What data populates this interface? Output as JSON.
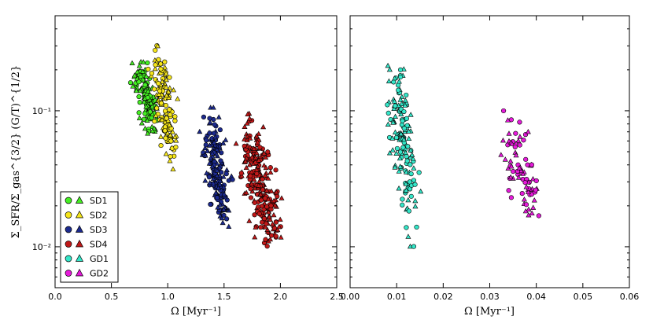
{
  "chart_data": [
    {
      "type": "scatter",
      "title": "",
      "xlabel": "Ω [Myr⁻¹]",
      "ylabel": "Σ_SFR/Σ_gas^{3/2} (G/T)^{1/2}",
      "xlim": [
        0.0,
        2.5
      ],
      "ylim": [
        0.005,
        0.5
      ],
      "yscale": "log",
      "xticks": [
        "0.0",
        "0.5",
        "1.0",
        "1.5",
        "2.0",
        "2.5"
      ],
      "yticks": [
        {
          "value": 0.01,
          "label": "10⁻²"
        },
        {
          "value": 0.1,
          "label": "10⁻¹"
        }
      ],
      "grid": false,
      "legend_position": "lower-left",
      "legend": [
        {
          "label": "SD1",
          "color": "#44ee22"
        },
        {
          "label": "SD2",
          "color": "#f5e51a"
        },
        {
          "label": "SD3",
          "color": "#1c2a8e"
        },
        {
          "label": "SD4",
          "color": "#c01818"
        },
        {
          "label": "GD1",
          "color": "#33e6c8"
        },
        {
          "label": "GD2",
          "color": "#e51ad9"
        }
      ],
      "series": [
        {
          "name": "SD1",
          "color": "#44ee22",
          "x_range": [
            0.62,
            0.97
          ],
          "y_range": [
            0.06,
            0.26
          ],
          "count": 130
        },
        {
          "name": "SD2",
          "color": "#f5e51a",
          "x_range": [
            0.78,
            1.12
          ],
          "y_range": [
            0.037,
            0.33
          ],
          "count": 140
        },
        {
          "name": "SD3",
          "color": "#1c2a8e",
          "x_range": [
            1.22,
            1.6
          ],
          "y_range": [
            0.014,
            0.105
          ],
          "count": 180
        },
        {
          "name": "SD4",
          "color": "#c01818",
          "x_range": [
            1.55,
            2.05
          ],
          "y_range": [
            0.009,
            0.095
          ],
          "count": 260
        }
      ]
    },
    {
      "type": "scatter",
      "title": "",
      "xlabel": "Ω [Myr⁻¹]",
      "ylabel": "",
      "xlim": [
        0.0,
        0.06
      ],
      "ylim": [
        0.005,
        0.5
      ],
      "yscale": "log",
      "xticks": [
        "0.00",
        "0.01",
        "0.02",
        "0.03",
        "0.04",
        "0.05",
        "0.06"
      ],
      "grid": false,
      "series": [
        {
          "name": "GD1",
          "color": "#33e6c8",
          "x_range": [
            0.006,
            0.016
          ],
          "y_range": [
            0.01,
            0.26
          ],
          "count": 150
        },
        {
          "name": "GD2",
          "color": "#e51ad9",
          "x_range": [
            0.029,
            0.043
          ],
          "y_range": [
            0.013,
            0.1
          ],
          "count": 80
        }
      ]
    }
  ]
}
